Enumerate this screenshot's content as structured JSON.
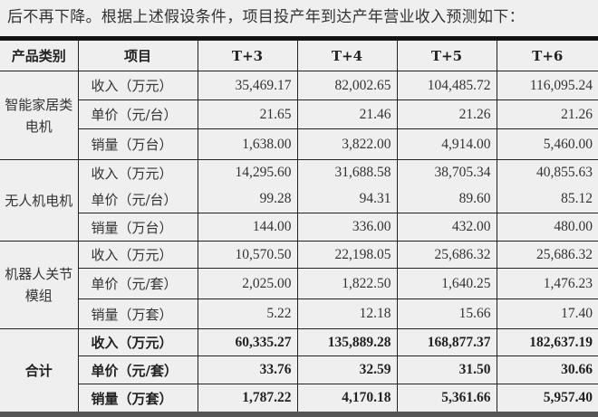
{
  "intro_text": "后不再下降。根据上述假设条件，项目投产年到达产年营业收入预测如下：",
  "table": {
    "headers": [
      "产品类别",
      "项目",
      "T+3",
      "T+4",
      "T+5",
      "T+6"
    ],
    "groups": [
      {
        "category": "智能家居类电机",
        "rows": [
          {
            "item": "收入（万元）",
            "values": [
              "35,469.17",
              "82,002.65",
              "104,485.72",
              "116,095.24"
            ]
          },
          {
            "item": "单价（元/台）",
            "values": [
              "21.65",
              "21.46",
              "21.26",
              "21.26"
            ]
          },
          {
            "item": "销量（万台）",
            "values": [
              "1,638.00",
              "3,822.00",
              "4,914.00",
              "5,460.00"
            ]
          }
        ]
      },
      {
        "category": "无人机电机",
        "rows": [
          {
            "item": "收入（万元）",
            "values": [
              "14,295.60",
              "31,688.58",
              "38,705.34",
              "40,855.63"
            ]
          },
          {
            "item": "单价（元/台）",
            "values": [
              "99.28",
              "94.31",
              "89.60",
              "85.12"
            ]
          },
          {
            "item": "销量（万台）",
            "values": [
              "144.00",
              "336.00",
              "432.00",
              "480.00"
            ]
          }
        ]
      },
      {
        "category": "机器人关节模组",
        "rows": [
          {
            "item": "收入（万元）",
            "values": [
              "10,570.50",
              "22,198.05",
              "25,686.32",
              "25,686.32"
            ]
          },
          {
            "item": "单价（元/套）",
            "values": [
              "2,025.00",
              "1,822.50",
              "1,640.25",
              "1,476.23"
            ]
          },
          {
            "item": "销量（万套）",
            "values": [
              "5.22",
              "12.18",
              "15.66",
              "17.40"
            ]
          }
        ]
      },
      {
        "category": "合计",
        "rows": [
          {
            "item": "收入（万元）",
            "values": [
              "60,335.27",
              "135,889.28",
              "168,877.37",
              "182,637.19"
            ]
          },
          {
            "item": "单价（元/套）",
            "values": [
              "33.76",
              "32.59",
              "31.50",
              "30.66"
            ]
          },
          {
            "item": "销量（万套）",
            "values": [
              "1,787.22",
              "4,170.18",
              "5,361.66",
              "5,957.40"
            ]
          }
        ]
      }
    ]
  }
}
